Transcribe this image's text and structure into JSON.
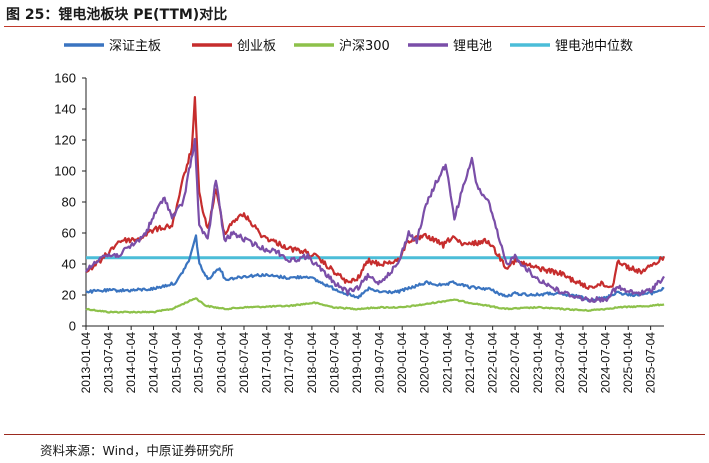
{
  "figure": {
    "title": "图 25：锂电池板块 PE(TTM)对比",
    "source": "资料来源：Wind，中原证券研究所"
  },
  "chart_data": {
    "type": "line",
    "title": "",
    "xlabel": "",
    "ylabel": "",
    "ylim": [
      0,
      160
    ],
    "yticks": [
      "0",
      "20",
      "40",
      "60",
      "80",
      "100",
      "120",
      "140",
      "160"
    ],
    "xlim": [
      "2013-01-04",
      "2025-10-20"
    ],
    "xticks": [
      "2013-01-04",
      "2013-07-04",
      "2014-01-04",
      "2014-07-04",
      "2015-01-04",
      "2015-07-04",
      "2016-01-04",
      "2016-07-04",
      "2017-01-04",
      "2017-07-04",
      "2018-01-04",
      "2018-07-04",
      "2019-01-04",
      "2019-07-04",
      "2020-01-04",
      "2020-07-04",
      "2021-01-04",
      "2021-07-04",
      "2022-01-04",
      "2022-07-04",
      "2023-01-04",
      "2023-07-04",
      "2024-01-04",
      "2024-07-04",
      "2025-01-04",
      "2025-07-04"
    ],
    "grid": false,
    "legend_position": "top",
    "series": [
      {
        "name": "深证主板",
        "color": "#3a74c0",
        "points": [
          [
            "2013-01-04",
            22
          ],
          [
            "2013-07-04",
            23
          ],
          [
            "2014-01-04",
            23
          ],
          [
            "2014-07-04",
            24
          ],
          [
            "2015-01-04",
            28
          ],
          [
            "2015-04-15",
            42
          ],
          [
            "2015-06-12",
            58
          ],
          [
            "2015-07-10",
            40
          ],
          [
            "2015-09-15",
            30
          ],
          [
            "2015-12-20",
            38
          ],
          [
            "2016-02-01",
            30
          ],
          [
            "2016-07-04",
            32
          ],
          [
            "2016-12-01",
            33
          ],
          [
            "2017-07-04",
            31
          ],
          [
            "2017-12-01",
            32
          ],
          [
            "2018-07-04",
            24
          ],
          [
            "2019-01-04",
            18
          ],
          [
            "2019-04-10",
            24
          ],
          [
            "2019-07-04",
            22
          ],
          [
            "2019-12-01",
            22
          ],
          [
            "2020-07-20",
            28
          ],
          [
            "2020-12-01",
            26
          ],
          [
            "2021-02-18",
            28
          ],
          [
            "2021-07-04",
            25
          ],
          [
            "2021-12-01",
            24
          ],
          [
            "2022-04-25",
            19
          ],
          [
            "2022-07-04",
            21
          ],
          [
            "2022-12-01",
            20
          ],
          [
            "2023-05-01",
            21
          ],
          [
            "2023-12-01",
            19
          ],
          [
            "2024-02-05",
            17
          ],
          [
            "2024-07-04",
            18
          ],
          [
            "2024-10-08",
            22
          ],
          [
            "2025-01-04",
            20
          ],
          [
            "2025-07-04",
            21
          ],
          [
            "2025-10-20",
            24
          ]
        ]
      },
      {
        "name": "创业板",
        "color": "#c62d2d",
        "points": [
          [
            "2013-01-04",
            35
          ],
          [
            "2013-05-01",
            42
          ],
          [
            "2013-10-01",
            55
          ],
          [
            "2014-03-01",
            56
          ],
          [
            "2014-07-04",
            62
          ],
          [
            "2014-12-01",
            65
          ],
          [
            "2015-03-01",
            95
          ],
          [
            "2015-05-10",
            115
          ],
          [
            "2015-06-03",
            146
          ],
          [
            "2015-07-08",
            85
          ],
          [
            "2015-09-15",
            62
          ],
          [
            "2015-11-20",
            88
          ],
          [
            "2016-01-28",
            60
          ],
          [
            "2016-04-10",
            68
          ],
          [
            "2016-07-04",
            72
          ],
          [
            "2016-12-01",
            58
          ],
          [
            "2017-07-04",
            50
          ],
          [
            "2017-11-01",
            48
          ],
          [
            "2018-02-01",
            45
          ],
          [
            "2018-07-04",
            35
          ],
          [
            "2018-10-20",
            28
          ],
          [
            "2019-01-04",
            30
          ],
          [
            "2019-04-01",
            42
          ],
          [
            "2019-07-04",
            40
          ],
          [
            "2019-12-01",
            42
          ],
          [
            "2020-02-20",
            55
          ],
          [
            "2020-07-20",
            58
          ],
          [
            "2020-12-01",
            52
          ],
          [
            "2021-02-18",
            58
          ],
          [
            "2021-05-01",
            52
          ],
          [
            "2021-12-01",
            55
          ],
          [
            "2022-04-25",
            38
          ],
          [
            "2022-07-04",
            42
          ],
          [
            "2022-12-01",
            38
          ],
          [
            "2023-07-04",
            34
          ],
          [
            "2024-02-05",
            25
          ],
          [
            "2024-06-01",
            27
          ],
          [
            "2024-08-30",
            25
          ],
          [
            "2024-10-08",
            42
          ],
          [
            "2025-01-04",
            38
          ],
          [
            "2025-04-08",
            35
          ],
          [
            "2025-07-04",
            38
          ],
          [
            "2025-10-20",
            45
          ]
        ]
      },
      {
        "name": "沪深300",
        "color": "#8dc14a",
        "points": [
          [
            "2013-01-04",
            11
          ],
          [
            "2013-07-04",
            9
          ],
          [
            "2014-01-04",
            9
          ],
          [
            "2014-07-04",
            9
          ],
          [
            "2014-12-01",
            11
          ],
          [
            "2015-06-10",
            18
          ],
          [
            "2015-09-01",
            13
          ],
          [
            "2016-02-01",
            11
          ],
          [
            "2016-07-04",
            12
          ],
          [
            "2017-07-04",
            13
          ],
          [
            "2018-01-25",
            15
          ],
          [
            "2018-07-04",
            12
          ],
          [
            "2019-01-04",
            11
          ],
          [
            "2019-07-04",
            12
          ],
          [
            "2020-01-04",
            12
          ],
          [
            "2020-07-04",
            14
          ],
          [
            "2021-02-18",
            17
          ],
          [
            "2021-07-04",
            15
          ],
          [
            "2022-04-25",
            11
          ],
          [
            "2023-01-04",
            12
          ],
          [
            "2024-02-05",
            10
          ],
          [
            "2024-07-04",
            11
          ],
          [
            "2024-10-08",
            12
          ],
          [
            "2025-07-04",
            13
          ],
          [
            "2025-10-20",
            14
          ]
        ]
      },
      {
        "name": "锂电池",
        "color": "#7a4ea8",
        "points": [
          [
            "2013-01-04",
            35
          ],
          [
            "2013-05-01",
            45
          ],
          [
            "2013-10-01",
            46
          ],
          [
            "2014-03-01",
            55
          ],
          [
            "2014-05-01",
            60
          ],
          [
            "2014-08-01",
            75
          ],
          [
            "2014-10-01",
            83
          ],
          [
            "2014-12-01",
            70
          ],
          [
            "2015-03-01",
            80
          ],
          [
            "2015-06-03",
            120
          ],
          [
            "2015-07-08",
            65
          ],
          [
            "2015-09-15",
            55
          ],
          [
            "2015-11-20",
            95
          ],
          [
            "2016-01-28",
            55
          ],
          [
            "2016-04-10",
            60
          ],
          [
            "2016-07-04",
            56
          ],
          [
            "2016-12-01",
            50
          ],
          [
            "2017-04-01",
            48
          ],
          [
            "2017-07-04",
            42
          ],
          [
            "2017-12-01",
            45
          ],
          [
            "2018-07-04",
            28
          ],
          [
            "2018-10-20",
            22
          ],
          [
            "2019-01-04",
            24
          ],
          [
            "2019-04-01",
            32
          ],
          [
            "2019-07-04",
            28
          ],
          [
            "2019-12-01",
            40
          ],
          [
            "2020-02-25",
            60
          ],
          [
            "2020-05-01",
            55
          ],
          [
            "2020-07-15",
            78
          ],
          [
            "2020-10-01",
            92
          ],
          [
            "2020-12-20",
            104
          ],
          [
            "2021-03-01",
            70
          ],
          [
            "2021-06-01",
            95
          ],
          [
            "2021-07-20",
            107
          ],
          [
            "2021-09-01",
            90
          ],
          [
            "2021-12-01",
            80
          ],
          [
            "2022-03-01",
            55
          ],
          [
            "2022-04-25",
            40
          ],
          [
            "2022-07-04",
            45
          ],
          [
            "2022-12-01",
            32
          ],
          [
            "2023-07-04",
            22
          ],
          [
            "2024-02-05",
            17
          ],
          [
            "2024-07-04",
            17
          ],
          [
            "2024-10-08",
            25
          ],
          [
            "2025-01-04",
            22
          ],
          [
            "2025-04-08",
            21
          ],
          [
            "2025-07-04",
            23
          ],
          [
            "2025-10-20",
            32
          ]
        ]
      },
      {
        "name": "锂电池中位数",
        "color": "#4bbdd8",
        "points": [
          [
            "2013-01-04",
            44
          ],
          [
            "2025-10-20",
            44
          ]
        ]
      }
    ]
  }
}
